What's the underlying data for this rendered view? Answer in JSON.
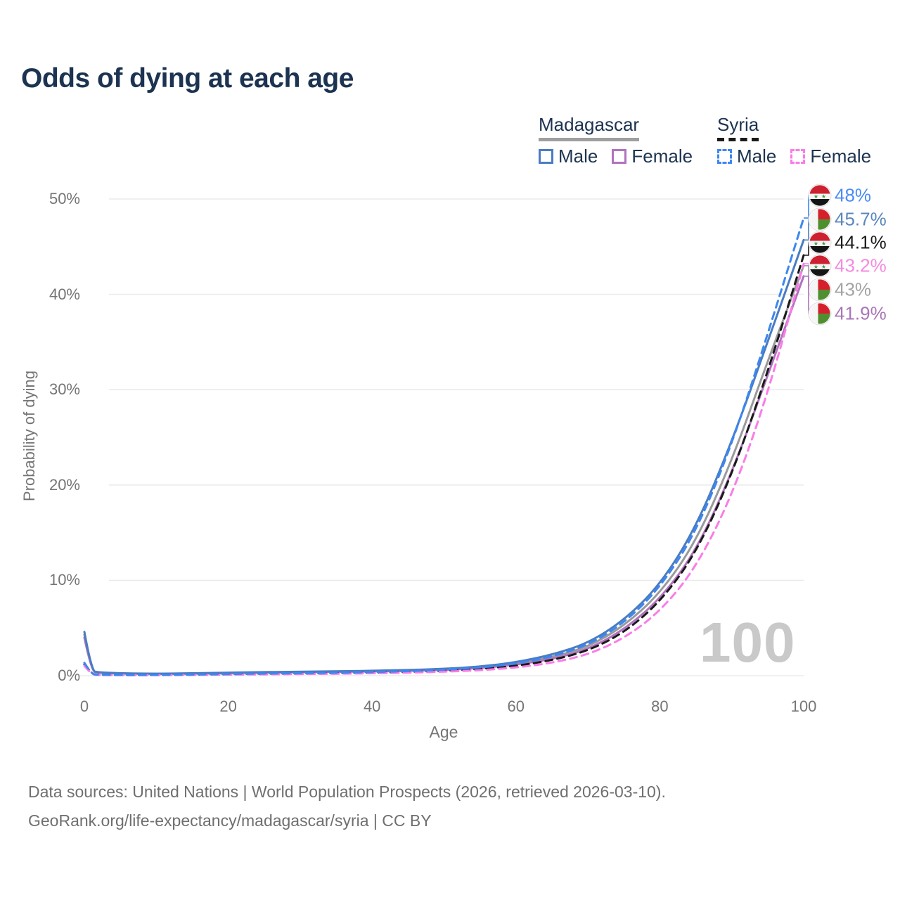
{
  "title": "Odds of dying at each age",
  "watermark": "100",
  "legend": {
    "groups": [
      {
        "name": "Madagascar",
        "underline_color": "#9e9e9e",
        "underline_style": "solid",
        "items": [
          {
            "label": "Male",
            "color": "#4a7cc2",
            "style": "solid"
          },
          {
            "label": "Female",
            "color": "#b172be",
            "style": "solid"
          }
        ]
      },
      {
        "name": "Syria",
        "underline_color": "#1a1a1a",
        "underline_style": "dashed",
        "items": [
          {
            "label": "Male",
            "color": "#3d87f0",
            "style": "dashed"
          },
          {
            "label": "Female",
            "color": "#fa7ce8",
            "style": "dashed"
          }
        ]
      }
    ]
  },
  "axes": {
    "y_title": "Probability of dying",
    "x_title": "Age",
    "y_ticks": [
      "50%",
      "40%",
      "30%",
      "20%",
      "10%",
      "0%"
    ],
    "y_tick_values": [
      50,
      40,
      30,
      20,
      10,
      0
    ],
    "x_ticks": [
      "0",
      "20",
      "40",
      "60",
      "80",
      "100"
    ],
    "x_tick_values": [
      0,
      20,
      40,
      60,
      80,
      100
    ]
  },
  "footer": {
    "line1": "Data sources: United Nations | World Population Prospects (2026, retrieved 2026-03-10).",
    "line2": "GeoRank.org/life-expectancy/madagascar/syria | CC BY"
  },
  "chart_data": {
    "type": "line",
    "title": "Odds of dying at each age",
    "xlabel": "Age",
    "ylabel": "Probability of dying",
    "xlim": [
      0,
      100
    ],
    "ylim": [
      0,
      50
    ],
    "grid": "horizontal",
    "legend_position": "top-right",
    "x": [
      0,
      1,
      2,
      5,
      10,
      15,
      20,
      25,
      30,
      35,
      40,
      45,
      50,
      55,
      60,
      65,
      70,
      75,
      80,
      85,
      90,
      95,
      100
    ],
    "series": [
      {
        "name": "Madagascar Both sexes",
        "color": "#9a9a9a",
        "dash": "solid",
        "flag": "madagascar",
        "end_label": "43%",
        "end_label_color": "#a3a3a3",
        "values": [
          4.3,
          0.48,
          0.33,
          0.24,
          0.19,
          0.23,
          0.3,
          0.35,
          0.39,
          0.43,
          0.48,
          0.55,
          0.66,
          0.87,
          1.27,
          1.95,
          3.0,
          5.2,
          8.6,
          14.0,
          22.5,
          33.0,
          43.0
        ]
      },
      {
        "name": "Madagascar Female",
        "color": "#b172be",
        "dash": "solid",
        "flag": "madagascar",
        "end_label": "41.9%",
        "end_label_color": "#a876b8",
        "values": [
          4.0,
          0.45,
          0.3,
          0.22,
          0.18,
          0.21,
          0.27,
          0.32,
          0.36,
          0.4,
          0.44,
          0.5,
          0.6,
          0.79,
          1.14,
          1.75,
          2.75,
          4.8,
          8.0,
          13.0,
          21.2,
          31.5,
          41.9
        ]
      },
      {
        "name": "Madagascar Male",
        "color": "#4a7cc2",
        "dash": "solid",
        "flag": "madagascar",
        "end_label": "45.7%",
        "end_label_color": "#5b87bd",
        "values": [
          4.6,
          0.5,
          0.35,
          0.25,
          0.2,
          0.25,
          0.32,
          0.38,
          0.42,
          0.46,
          0.52,
          0.6,
          0.72,
          0.95,
          1.4,
          2.2,
          3.4,
          5.8,
          9.5,
          15.5,
          24.5,
          35.0,
          45.7
        ]
      },
      {
        "name": "Syria Both sexes",
        "color": "#1a1a1a",
        "dash": "dashed",
        "flag": "syria",
        "end_label": "44.1%",
        "end_label_color": "#1a1a1a",
        "values": [
          1.2,
          0.14,
          0.09,
          0.07,
          0.07,
          0.1,
          0.15,
          0.18,
          0.21,
          0.25,
          0.31,
          0.39,
          0.51,
          0.7,
          1.02,
          1.62,
          2.6,
          4.5,
          7.7,
          12.8,
          21.0,
          31.8,
          44.1
        ]
      },
      {
        "name": "Syria Female",
        "color": "#fa7ce8",
        "dash": "dashed",
        "flag": "syria",
        "end_label": "43.2%",
        "end_label_color": "#f48ae0",
        "values": [
          1.05,
          0.12,
          0.08,
          0.06,
          0.06,
          0.08,
          0.11,
          0.14,
          0.17,
          0.2,
          0.25,
          0.32,
          0.42,
          0.57,
          0.84,
          1.35,
          2.2,
          3.9,
          6.7,
          11.3,
          18.8,
          29.5,
          43.2
        ]
      },
      {
        "name": "Syria Male",
        "color": "#3d87f0",
        "dash": "dashed",
        "flag": "syria",
        "end_label": "48%",
        "end_label_color": "#4b8cf5",
        "values": [
          1.35,
          0.15,
          0.1,
          0.08,
          0.08,
          0.12,
          0.18,
          0.22,
          0.26,
          0.31,
          0.38,
          0.47,
          0.62,
          0.85,
          1.25,
          2.0,
          3.2,
          5.5,
          9.2,
          15.0,
          24.2,
          35.8,
          48.0
        ]
      }
    ],
    "end_labels_top_to_bottom": [
      "48%",
      "45.7%",
      "44.1%",
      "43.2%",
      "43%",
      "41.9%"
    ]
  }
}
